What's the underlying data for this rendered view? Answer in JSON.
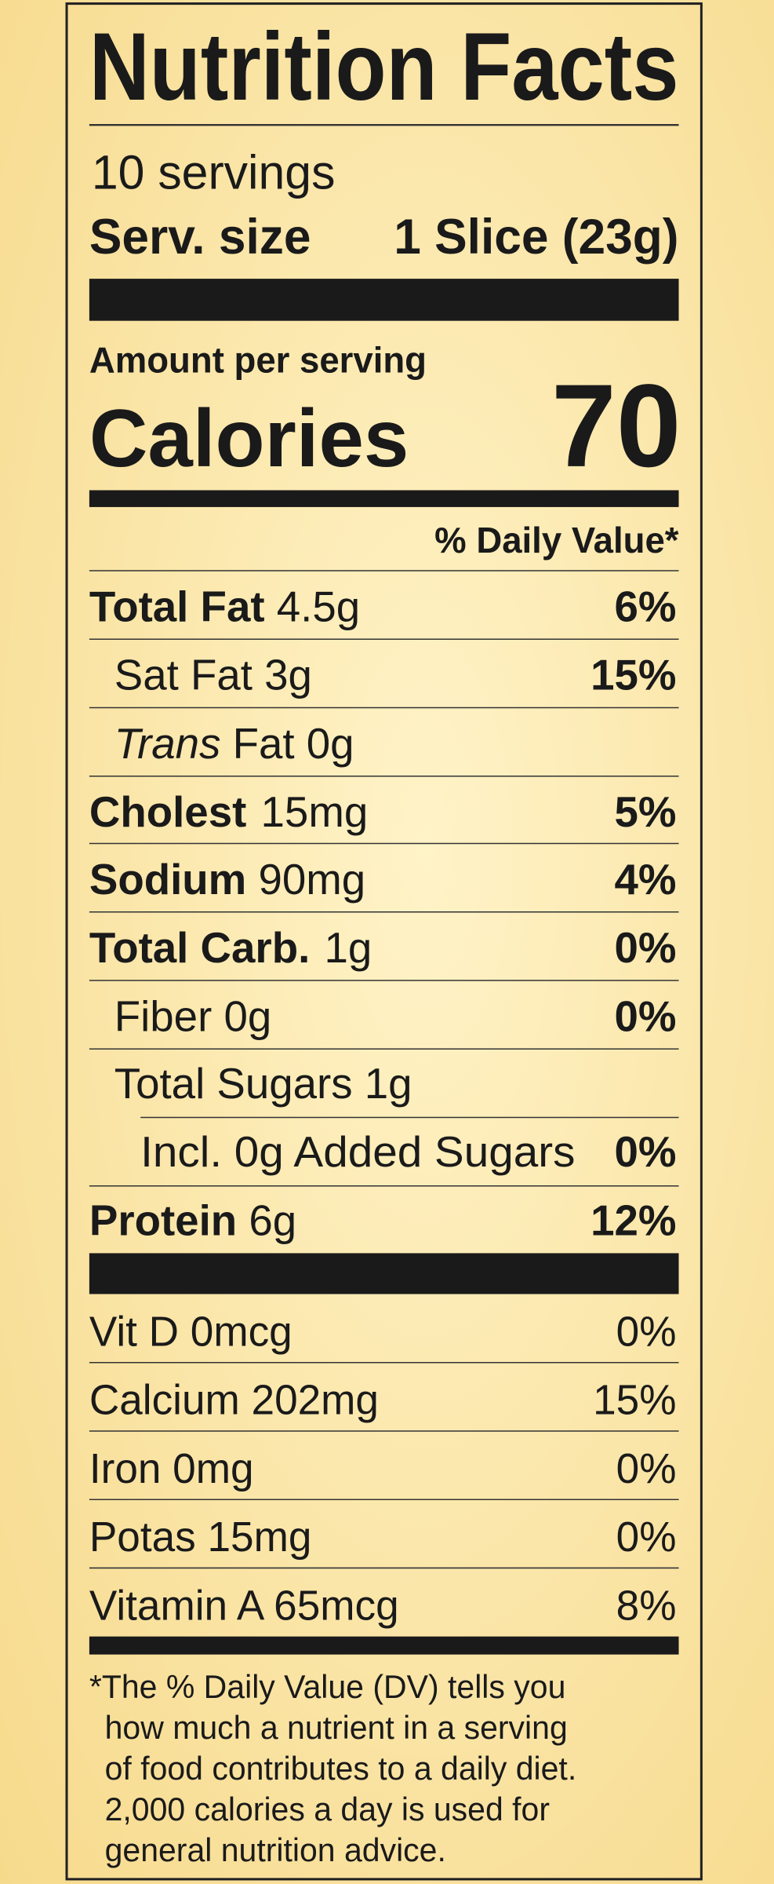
{
  "title": "Nutrition Facts",
  "servings": "10 servings",
  "serving_size": {
    "label": "Serv. size",
    "value": "1 Slice (23g)"
  },
  "amount_per_serving": "Amount per serving",
  "calories": {
    "label": "Calories",
    "value": "70"
  },
  "daily_value_header": "% Daily Value*",
  "nutrients": [
    {
      "name": "Total Fat",
      "amount": "4.5g",
      "dv": "6%"
    },
    {
      "name": "Sat Fat",
      "amount": "3g",
      "dv": "15%"
    },
    {
      "name": "Trans",
      "amount": "Fat 0g"
    },
    {
      "name": "Cholest",
      "amount": "15mg",
      "dv": "5%"
    },
    {
      "name": "Sodium",
      "amount": "90mg",
      "dv": "4%"
    },
    {
      "name": "Total Carb.",
      "amount": "1g",
      "dv": "0%"
    },
    {
      "name": "Fiber",
      "amount": "0g",
      "dv": "0%"
    },
    {
      "name": "Total Sugars",
      "amount": "1g"
    },
    {
      "name": "Incl. 0g Added Sugars",
      "dv": "0%"
    },
    {
      "name": "Protein",
      "amount": "6g",
      "dv": "12%"
    }
  ],
  "vitamins": [
    {
      "label": "Vit D 0mcg",
      "dv": "0%"
    },
    {
      "label": "Calcium 202mg",
      "dv": "15%"
    },
    {
      "label": "Iron 0mg",
      "dv": "0%"
    },
    {
      "label": "Potas 15mg",
      "dv": "0%"
    },
    {
      "label": "Vitamin A 65mcg",
      "dv": "8%"
    }
  ],
  "footnote": [
    "*The % Daily Value (DV) tells you",
    "how much a nutrient in a serving",
    "of food contributes to a daily diet.",
    "2,000 calories a day is used for",
    "general nutrition advice."
  ]
}
